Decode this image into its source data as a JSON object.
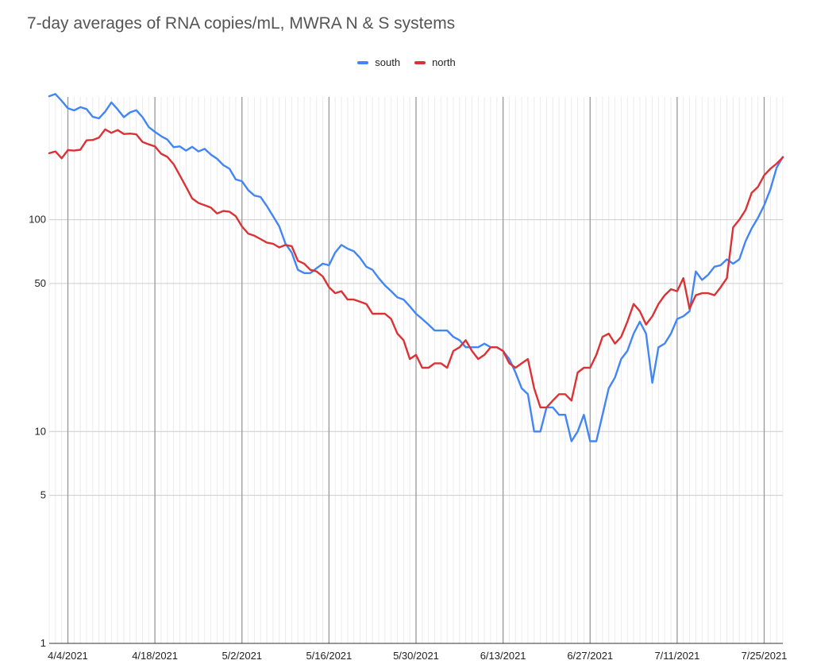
{
  "chart_data": {
    "type": "line",
    "title": "7-day averages of RNA copies/mL, MWRA  N & S systems",
    "xlabel": "",
    "ylabel": "",
    "y_scale": "log",
    "ylim": [
      1,
      380
    ],
    "y_ticks": [
      1,
      5,
      10,
      50,
      100
    ],
    "x_start": "4/1/2021",
    "x_end": "7/28/2021",
    "x_tick_labels": [
      "4/4/2021",
      "4/18/2021",
      "5/2/2021",
      "5/16/2021",
      "5/30/2021",
      "6/13/2021",
      "6/27/2021",
      "7/11/2021",
      "7/25/2021"
    ],
    "grid": true,
    "legend_position": "top-center",
    "series": [
      {
        "name": "south",
        "color": "#4285f4",
        "points": [
          [
            "4/1/2021",
            383
          ],
          [
            "4/2/2021",
            392
          ],
          [
            "4/3/2021",
            364
          ],
          [
            "4/4/2021",
            336
          ],
          [
            "4/5/2021",
            328
          ],
          [
            "4/6/2021",
            340
          ],
          [
            "4/7/2021",
            333
          ],
          [
            "4/8/2021",
            306
          ],
          [
            "4/9/2021",
            301
          ],
          [
            "4/10/2021",
            324
          ],
          [
            "4/11/2021",
            358
          ],
          [
            "4/12/2021",
            332
          ],
          [
            "4/13/2021",
            305
          ],
          [
            "4/14/2021",
            321
          ],
          [
            "4/15/2021",
            329
          ],
          [
            "4/16/2021",
            305
          ],
          [
            "4/17/2021",
            274
          ],
          [
            "4/18/2021",
            260
          ],
          [
            "4/19/2021",
            248
          ],
          [
            "4/20/2021",
            239
          ],
          [
            "4/21/2021",
            220
          ],
          [
            "4/22/2021",
            222
          ],
          [
            "4/23/2021",
            212
          ],
          [
            "4/24/2021",
            221
          ],
          [
            "4/25/2021",
            210
          ],
          [
            "4/26/2021",
            216
          ],
          [
            "4/27/2021",
            203
          ],
          [
            "4/28/2021",
            194
          ],
          [
            "4/29/2021",
            181
          ],
          [
            "4/30/2021",
            174
          ],
          [
            "5/1/2021",
            155
          ],
          [
            "5/2/2021",
            152
          ],
          [
            "5/3/2021",
            138
          ],
          [
            "5/4/2021",
            130
          ],
          [
            "5/5/2021",
            128
          ],
          [
            "5/6/2021",
            116
          ],
          [
            "5/7/2021",
            104
          ],
          [
            "5/8/2021",
            93
          ],
          [
            "5/9/2021",
            77
          ],
          [
            "5/10/2021",
            70
          ],
          [
            "5/11/2021",
            58
          ],
          [
            "5/12/2021",
            56
          ],
          [
            "5/13/2021",
            56
          ],
          [
            "5/14/2021",
            59
          ],
          [
            "5/15/2021",
            62
          ],
          [
            "5/16/2021",
            61
          ],
          [
            "5/17/2021",
            70
          ],
          [
            "5/18/2021",
            76
          ],
          [
            "5/19/2021",
            73
          ],
          [
            "5/20/2021",
            71
          ],
          [
            "5/21/2021",
            66
          ],
          [
            "5/22/2021",
            60
          ],
          [
            "5/23/2021",
            58
          ],
          [
            "5/24/2021",
            53
          ],
          [
            "5/25/2021",
            49
          ],
          [
            "5/26/2021",
            46
          ],
          [
            "5/27/2021",
            43
          ],
          [
            "5/28/2021",
            42
          ],
          [
            "5/29/2021",
            39
          ],
          [
            "5/30/2021",
            36
          ],
          [
            "5/31/2021",
            34
          ],
          [
            "6/1/2021",
            32
          ],
          [
            "6/2/2021",
            30
          ],
          [
            "6/3/2021",
            30
          ],
          [
            "6/4/2021",
            30
          ],
          [
            "6/5/2021",
            28
          ],
          [
            "6/6/2021",
            27
          ],
          [
            "6/7/2021",
            25
          ],
          [
            "6/8/2021",
            25
          ],
          [
            "6/9/2021",
            25
          ],
          [
            "6/10/2021",
            26
          ],
          [
            "6/11/2021",
            25
          ],
          [
            "6/12/2021",
            25
          ],
          [
            "6/13/2021",
            24
          ],
          [
            "6/14/2021",
            22
          ],
          [
            "6/15/2021",
            19
          ],
          [
            "6/16/2021",
            16
          ],
          [
            "6/17/2021",
            15
          ],
          [
            "6/18/2021",
            10
          ],
          [
            "6/19/2021",
            10
          ],
          [
            "6/20/2021",
            13
          ],
          [
            "6/21/2021",
            13
          ],
          [
            "6/22/2021",
            12
          ],
          [
            "6/23/2021",
            12
          ],
          [
            "6/24/2021",
            9
          ],
          [
            "6/25/2021",
            10
          ],
          [
            "6/26/2021",
            12
          ],
          [
            "6/27/2021",
            9
          ],
          [
            "6/28/2021",
            9
          ],
          [
            "6/29/2021",
            12
          ],
          [
            "6/30/2021",
            16
          ],
          [
            "7/1/2021",
            18
          ],
          [
            "7/2/2021",
            22
          ],
          [
            "7/3/2021",
            24
          ],
          [
            "7/4/2021",
            29
          ],
          [
            "7/5/2021",
            33
          ],
          [
            "7/6/2021",
            29
          ],
          [
            "7/7/2021",
            17
          ],
          [
            "7/8/2021",
            25
          ],
          [
            "7/9/2021",
            26
          ],
          [
            "7/10/2021",
            29
          ],
          [
            "7/11/2021",
            34
          ],
          [
            "7/12/2021",
            35
          ],
          [
            "7/13/2021",
            37
          ],
          [
            "7/14/2021",
            57
          ],
          [
            "7/15/2021",
            52
          ],
          [
            "7/16/2021",
            55
          ],
          [
            "7/17/2021",
            60
          ],
          [
            "7/18/2021",
            61
          ],
          [
            "7/19/2021",
            65
          ],
          [
            "7/20/2021",
            62
          ],
          [
            "7/21/2021",
            65
          ],
          [
            "7/22/2021",
            79
          ],
          [
            "7/23/2021",
            91
          ],
          [
            "7/24/2021",
            102
          ],
          [
            "7/25/2021",
            117
          ],
          [
            "7/26/2021",
            139
          ],
          [
            "7/27/2021",
            176
          ],
          [
            "7/28/2021",
            198
          ]
        ]
      },
      {
        "name": "north",
        "color": "#db3236",
        "points": [
          [
            "4/1/2021",
            206
          ],
          [
            "4/2/2021",
            210
          ],
          [
            "4/3/2021",
            195
          ],
          [
            "4/4/2021",
            213
          ],
          [
            "4/5/2021",
            212
          ],
          [
            "4/6/2021",
            214
          ],
          [
            "4/7/2021",
            237
          ],
          [
            "4/8/2021",
            238
          ],
          [
            "4/9/2021",
            244
          ],
          [
            "4/10/2021",
            267
          ],
          [
            "4/11/2021",
            257
          ],
          [
            "4/12/2021",
            265
          ],
          [
            "4/13/2021",
            254
          ],
          [
            "4/14/2021",
            255
          ],
          [
            "4/15/2021",
            253
          ],
          [
            "4/16/2021",
            233
          ],
          [
            "4/17/2021",
            227
          ],
          [
            "4/18/2021",
            222
          ],
          [
            "4/19/2021",
            205
          ],
          [
            "4/20/2021",
            198
          ],
          [
            "4/21/2021",
            183
          ],
          [
            "4/22/2021",
            162
          ],
          [
            "4/23/2021",
            143
          ],
          [
            "4/24/2021",
            126
          ],
          [
            "4/25/2021",
            120
          ],
          [
            "4/26/2021",
            117
          ],
          [
            "4/27/2021",
            114
          ],
          [
            "4/28/2021",
            107
          ],
          [
            "4/29/2021",
            110
          ],
          [
            "4/30/2021",
            109
          ],
          [
            "5/1/2021",
            104
          ],
          [
            "5/2/2021",
            93
          ],
          [
            "5/3/2021",
            86
          ],
          [
            "5/4/2021",
            84
          ],
          [
            "5/5/2021",
            81
          ],
          [
            "5/6/2021",
            78
          ],
          [
            "5/7/2021",
            77
          ],
          [
            "5/8/2021",
            74
          ],
          [
            "5/9/2021",
            76
          ],
          [
            "5/10/2021",
            75
          ],
          [
            "5/11/2021",
            64
          ],
          [
            "5/12/2021",
            62
          ],
          [
            "5/13/2021",
            58
          ],
          [
            "5/14/2021",
            57
          ],
          [
            "5/15/2021",
            54
          ],
          [
            "5/16/2021",
            48
          ],
          [
            "5/17/2021",
            45
          ],
          [
            "5/18/2021",
            46
          ],
          [
            "5/19/2021",
            42
          ],
          [
            "5/20/2021",
            42
          ],
          [
            "5/21/2021",
            41
          ],
          [
            "5/22/2021",
            40
          ],
          [
            "5/23/2021",
            36
          ],
          [
            "5/24/2021",
            36
          ],
          [
            "5/25/2021",
            36
          ],
          [
            "5/26/2021",
            34
          ],
          [
            "5/27/2021",
            29
          ],
          [
            "5/28/2021",
            27
          ],
          [
            "5/29/2021",
            22
          ],
          [
            "5/30/2021",
            23
          ],
          [
            "5/31/2021",
            20
          ],
          [
            "6/1/2021",
            20
          ],
          [
            "6/2/2021",
            21
          ],
          [
            "6/3/2021",
            21
          ],
          [
            "6/4/2021",
            20
          ],
          [
            "6/5/2021",
            24
          ],
          [
            "6/6/2021",
            25
          ],
          [
            "6/7/2021",
            27
          ],
          [
            "6/8/2021",
            24
          ],
          [
            "6/9/2021",
            22
          ],
          [
            "6/10/2021",
            23
          ],
          [
            "6/11/2021",
            25
          ],
          [
            "6/12/2021",
            25
          ],
          [
            "6/13/2021",
            24
          ],
          [
            "6/14/2021",
            21
          ],
          [
            "6/15/2021",
            20
          ],
          [
            "6/16/2021",
            21
          ],
          [
            "6/17/2021",
            22
          ],
          [
            "6/18/2021",
            16
          ],
          [
            "6/19/2021",
            13
          ],
          [
            "6/20/2021",
            13
          ],
          [
            "6/21/2021",
            14
          ],
          [
            "6/22/2021",
            15
          ],
          [
            "6/23/2021",
            15
          ],
          [
            "6/24/2021",
            14
          ],
          [
            "6/25/2021",
            19
          ],
          [
            "6/26/2021",
            20
          ],
          [
            "6/27/2021",
            20
          ],
          [
            "6/28/2021",
            23
          ],
          [
            "6/29/2021",
            28
          ],
          [
            "6/30/2021",
            29
          ],
          [
            "7/1/2021",
            26
          ],
          [
            "7/2/2021",
            28
          ],
          [
            "7/3/2021",
            33
          ],
          [
            "7/4/2021",
            40
          ],
          [
            "7/5/2021",
            37
          ],
          [
            "7/6/2021",
            32
          ],
          [
            "7/7/2021",
            35
          ],
          [
            "7/8/2021",
            40
          ],
          [
            "7/9/2021",
            44
          ],
          [
            "7/10/2021",
            47
          ],
          [
            "7/11/2021",
            46
          ],
          [
            "7/12/2021",
            53
          ],
          [
            "7/13/2021",
            38
          ],
          [
            "7/14/2021",
            44
          ],
          [
            "7/15/2021",
            45
          ],
          [
            "7/16/2021",
            45
          ],
          [
            "7/17/2021",
            44
          ],
          [
            "7/18/2021",
            48
          ],
          [
            "7/19/2021",
            53
          ],
          [
            "7/20/2021",
            92
          ],
          [
            "7/21/2021",
            100
          ],
          [
            "7/22/2021",
            111
          ],
          [
            "7/23/2021",
            134
          ],
          [
            "7/24/2021",
            143
          ],
          [
            "7/25/2021",
            162
          ],
          [
            "7/26/2021",
            174
          ],
          [
            "7/27/2021",
            184
          ],
          [
            "7/28/2021",
            197
          ]
        ]
      }
    ]
  }
}
